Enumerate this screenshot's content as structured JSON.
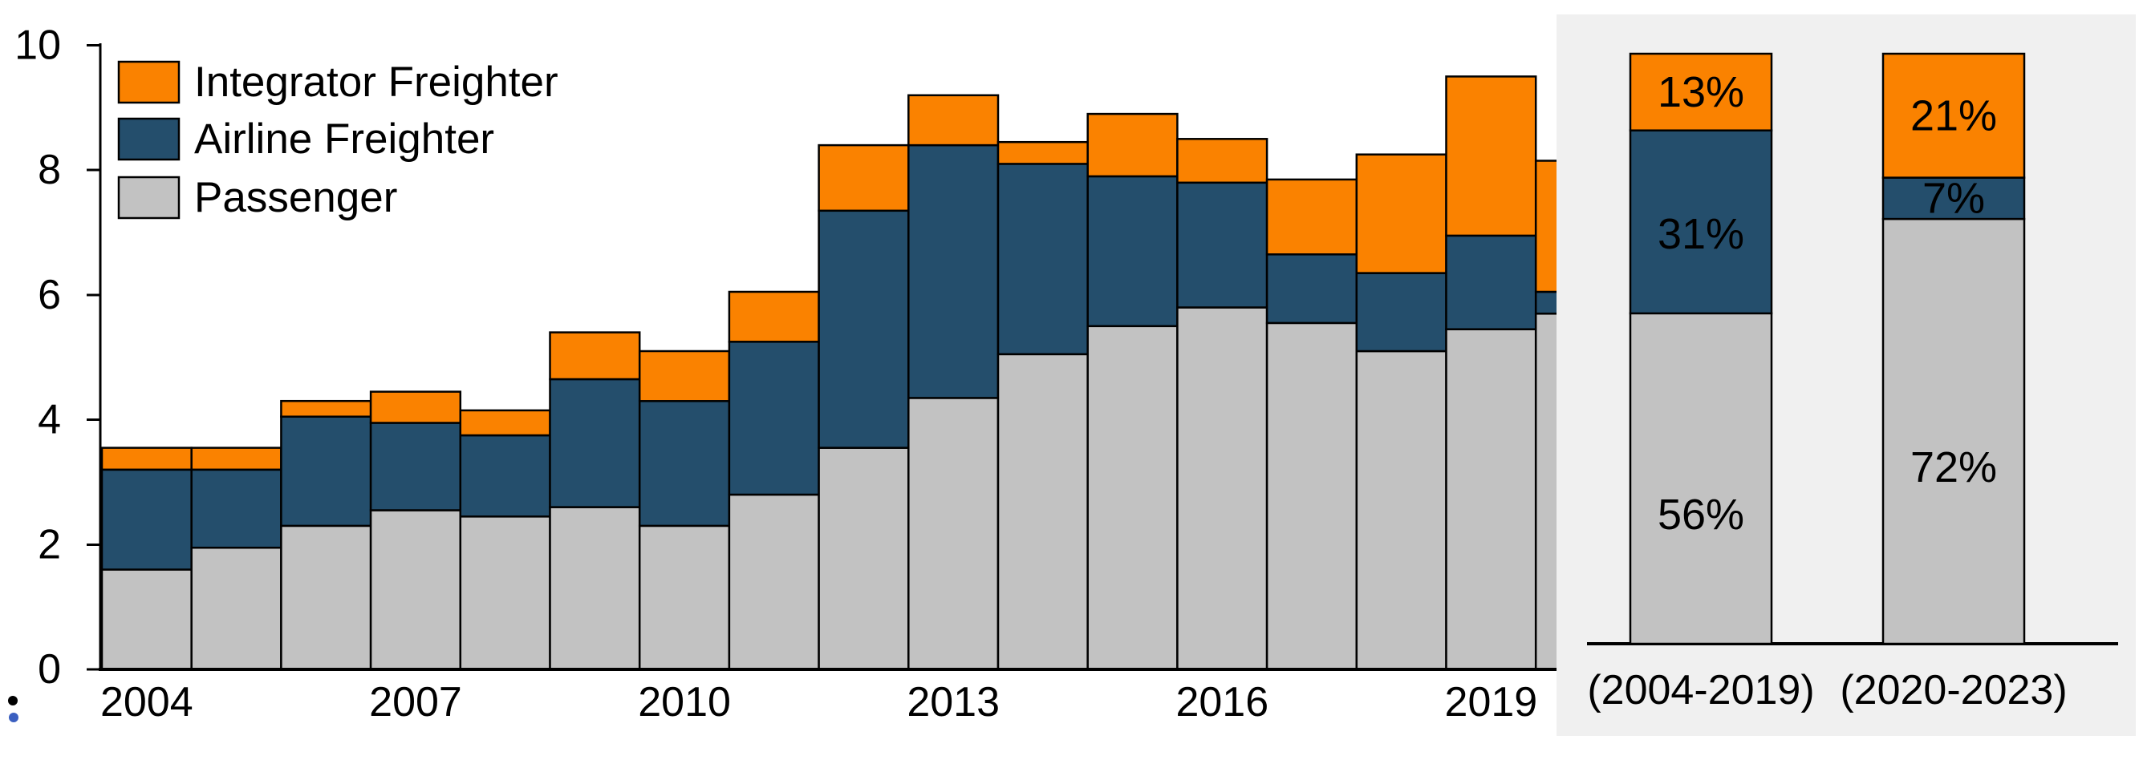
{
  "page": {
    "background": "#ffffff"
  },
  "colors": {
    "integrator_freighter": "#FA8200",
    "airline_freighter": "#244E6C",
    "passenger": "#C2C2C2",
    "bar_border": "#000000",
    "axis": "#000000",
    "panel_background": "#F0F0F0",
    "stray_mark_black": "#000000",
    "stray_mark_blue": "#3B5FC0"
  },
  "legend": {
    "items": [
      {
        "label": "Integrator Freighter",
        "color": "#FA8200"
      },
      {
        "label": "Airline Freighter",
        "color": "#244E6C"
      },
      {
        "label": "Passenger",
        "color": "#C2C2C2"
      }
    ]
  },
  "stray_marks": {
    "colon": ":"
  },
  "chart_data": [
    {
      "id": "fleet-by-year",
      "type": "bar",
      "stacked": true,
      "title": "",
      "xlabel": "",
      "ylabel": "",
      "x": [
        2004,
        2005,
        2006,
        2007,
        2008,
        2009,
        2010,
        2011,
        2012,
        2013,
        2014,
        2015,
        2016,
        2017,
        2018,
        2019,
        2020
      ],
      "x_tick_labels": [
        "2004",
        "2007",
        "2010",
        "2013",
        "2016",
        "2019"
      ],
      "ylim": [
        0,
        10
      ],
      "yticks": [
        0,
        2,
        4,
        6,
        8,
        10
      ],
      "grid": false,
      "legend_position": "top-left",
      "series": [
        {
          "name": "Passenger",
          "color": "#C2C2C2",
          "values": [
            1.6,
            1.95,
            2.3,
            2.55,
            2.45,
            2.6,
            2.3,
            2.8,
            3.55,
            4.35,
            5.05,
            5.5,
            5.8,
            5.55,
            5.1,
            5.45,
            5.7
          ]
        },
        {
          "name": "Airline Freighter",
          "color": "#244E6C",
          "values": [
            1.6,
            1.25,
            1.75,
            1.4,
            1.3,
            2.05,
            2.0,
            2.45,
            3.8,
            4.05,
            3.05,
            2.4,
            2.0,
            1.1,
            1.25,
            1.5,
            0.35
          ]
        },
        {
          "name": "Integrator Freighter",
          "color": "#FA8200",
          "values": [
            0.35,
            0.35,
            0.25,
            0.5,
            0.4,
            0.75,
            0.8,
            0.8,
            1.05,
            0.8,
            0.35,
            1.0,
            0.7,
            1.2,
            1.9,
            2.55,
            2.1
          ]
        }
      ],
      "note": "2020 bar only partially visible; right share panel overlaps it"
    },
    {
      "id": "fleet-share",
      "type": "bar",
      "stacked": true,
      "units": "percent",
      "categories": [
        "(2004-2019)",
        "(2020-2023)"
      ],
      "ylim": [
        0,
        100
      ],
      "series": [
        {
          "name": "Passenger",
          "color": "#C2C2C2",
          "values": [
            56,
            72
          ],
          "labels": [
            "56%",
            "72%"
          ],
          "label_color": "#000000"
        },
        {
          "name": "Airline Freighter",
          "color": "#244E6C",
          "values": [
            31,
            7
          ],
          "labels": [
            "31%",
            "7%"
          ],
          "label_color": "#FFFFFF"
        },
        {
          "name": "Integrator Freighter",
          "color": "#FA8200",
          "values": [
            13,
            21
          ],
          "labels": [
            "13%",
            "21%"
          ],
          "label_color": "#000000"
        }
      ]
    }
  ]
}
